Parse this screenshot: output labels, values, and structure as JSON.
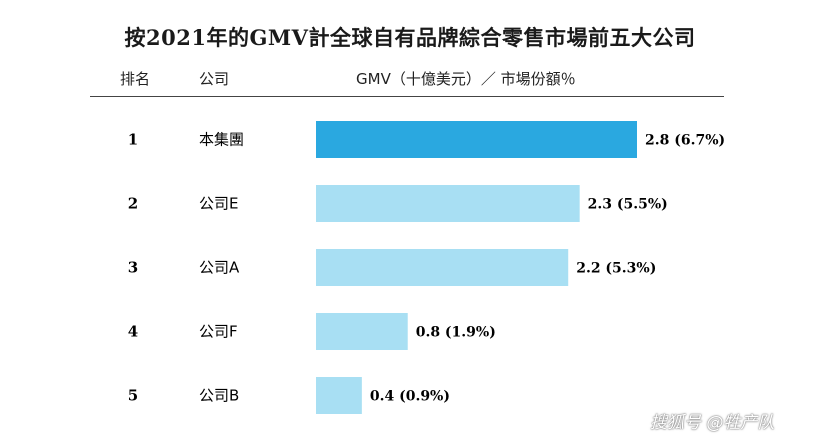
{
  "chart_data": {
    "type": "bar",
    "orientation": "horizontal",
    "title": "按2021年的GMV計全球自有品牌綜合零售市場前五大公司",
    "columns": {
      "rank": "排名",
      "company": "公司",
      "value": "GMV（十億美元）／ 市場份額％"
    },
    "categories": [
      "本集團",
      "公司E",
      "公司A",
      "公司F",
      "公司B"
    ],
    "ranks": [
      "1",
      "2",
      "3",
      "4",
      "5"
    ],
    "values": [
      2.8,
      2.3,
      2.2,
      0.8,
      0.4
    ],
    "shares": [
      6.7,
      5.5,
      5.3,
      1.9,
      0.9
    ],
    "labels": [
      "2.8 (6.7%)",
      "2.3 (5.5%)",
      "2.2 (5.3%)",
      "0.8 (1.9%)",
      "0.4 (0.9%)"
    ],
    "highlight_color": "#2aa8e0",
    "bar_color": "#a8dff3",
    "grid": false,
    "xlim": [
      0,
      2.8
    ]
  },
  "watermark": "搜狐号 @牲产队"
}
